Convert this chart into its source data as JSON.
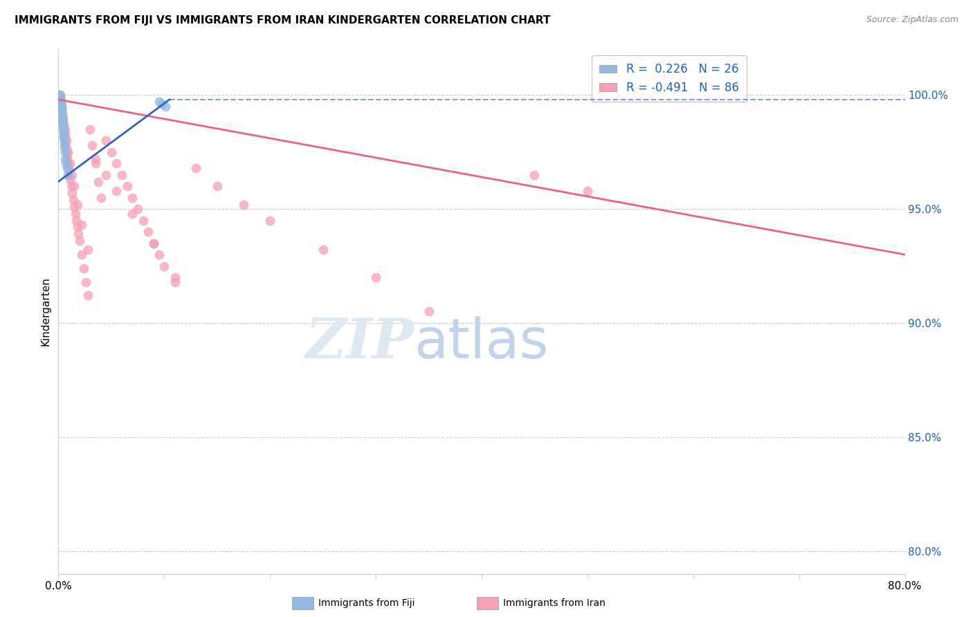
{
  "title": "IMMIGRANTS FROM FIJI VS IMMIGRANTS FROM IRAN KINDERGARTEN CORRELATION CHART",
  "source": "Source: ZipAtlas.com",
  "ylabel": "Kindergarten",
  "y_ticks": [
    80.0,
    85.0,
    90.0,
    95.0,
    100.0
  ],
  "x_min": 0.0,
  "x_max": 80.0,
  "y_min": 79.0,
  "y_max": 102.0,
  "fiji_R": 0.226,
  "fiji_N": 26,
  "iran_R": -0.491,
  "iran_N": 86,
  "fiji_color": "#92b8e0",
  "iran_color": "#f4a0b5",
  "fiji_line_color": "#3060c0",
  "iran_line_color": "#f06080",
  "background_color": "#ffffff",
  "grid_color": "#cccccc",
  "fiji_x": [
    0.15,
    0.18,
    0.2,
    0.22,
    0.25,
    0.28,
    0.3,
    0.32,
    0.35,
    0.38,
    0.4,
    0.42,
    0.45,
    0.48,
    0.5,
    0.52,
    0.55,
    0.58,
    0.6,
    0.65,
    0.7,
    0.8,
    0.9,
    9.5,
    9.8,
    10.1
  ],
  "fiji_y": [
    99.9,
    100.0,
    99.8,
    99.7,
    99.6,
    99.5,
    99.3,
    99.2,
    99.0,
    98.9,
    98.8,
    98.7,
    98.5,
    98.3,
    98.2,
    98.1,
    97.9,
    97.7,
    97.5,
    97.2,
    97.0,
    96.8,
    96.5,
    99.7,
    99.6,
    99.5
  ],
  "iran_x": [
    0.1,
    0.15,
    0.18,
    0.2,
    0.22,
    0.25,
    0.28,
    0.3,
    0.32,
    0.35,
    0.38,
    0.4,
    0.42,
    0.45,
    0.48,
    0.5,
    0.52,
    0.55,
    0.58,
    0.6,
    0.65,
    0.7,
    0.75,
    0.8,
    0.85,
    0.9,
    0.95,
    1.0,
    1.1,
    1.2,
    1.3,
    1.4,
    1.5,
    1.6,
    1.7,
    1.8,
    1.9,
    2.0,
    2.2,
    2.4,
    2.6,
    2.8,
    3.0,
    3.2,
    3.5,
    3.8,
    4.0,
    4.5,
    5.0,
    5.5,
    6.0,
    6.5,
    7.0,
    7.5,
    8.0,
    8.5,
    9.0,
    9.5,
    10.0,
    11.0,
    0.3,
    0.45,
    0.6,
    0.75,
    0.9,
    1.1,
    1.3,
    1.5,
    1.8,
    2.2,
    2.8,
    3.5,
    4.5,
    5.5,
    7.0,
    9.0,
    11.0,
    13.0,
    15.0,
    17.5,
    20.0,
    25.0,
    30.0,
    35.0,
    45.0,
    50.0
  ],
  "iran_y": [
    100.0,
    99.9,
    99.8,
    99.8,
    99.7,
    99.6,
    99.5,
    99.4,
    99.3,
    99.2,
    99.1,
    99.0,
    98.9,
    98.8,
    98.7,
    98.6,
    98.5,
    98.4,
    98.3,
    98.2,
    98.0,
    97.8,
    97.6,
    97.4,
    97.2,
    97.0,
    96.8,
    96.6,
    96.3,
    96.0,
    95.7,
    95.4,
    95.1,
    94.8,
    94.5,
    94.2,
    93.9,
    93.6,
    93.0,
    92.4,
    91.8,
    91.2,
    98.5,
    97.8,
    97.0,
    96.2,
    95.5,
    98.0,
    97.5,
    97.0,
    96.5,
    96.0,
    95.5,
    95.0,
    94.5,
    94.0,
    93.5,
    93.0,
    92.5,
    91.8,
    99.5,
    99.0,
    98.5,
    98.0,
    97.5,
    97.0,
    96.5,
    96.0,
    95.2,
    94.3,
    93.2,
    97.2,
    96.5,
    95.8,
    94.8,
    93.5,
    92.0,
    96.8,
    96.0,
    95.2,
    94.5,
    93.2,
    92.0,
    90.5,
    96.5,
    95.8
  ],
  "iran_line_x0": 0.0,
  "iran_line_y0": 99.8,
  "iran_line_x1": 80.0,
  "iran_line_y1": 93.0,
  "fiji_line_solid_x0": 0.0,
  "fiji_line_solid_y0": 96.2,
  "fiji_line_solid_x1": 10.5,
  "fiji_line_solid_y1": 99.8,
  "fiji_line_dash_x0": 10.5,
  "fiji_line_dash_y0": 99.8,
  "fiji_line_dash_x1": 80.0,
  "fiji_line_dash_y1": 99.8
}
